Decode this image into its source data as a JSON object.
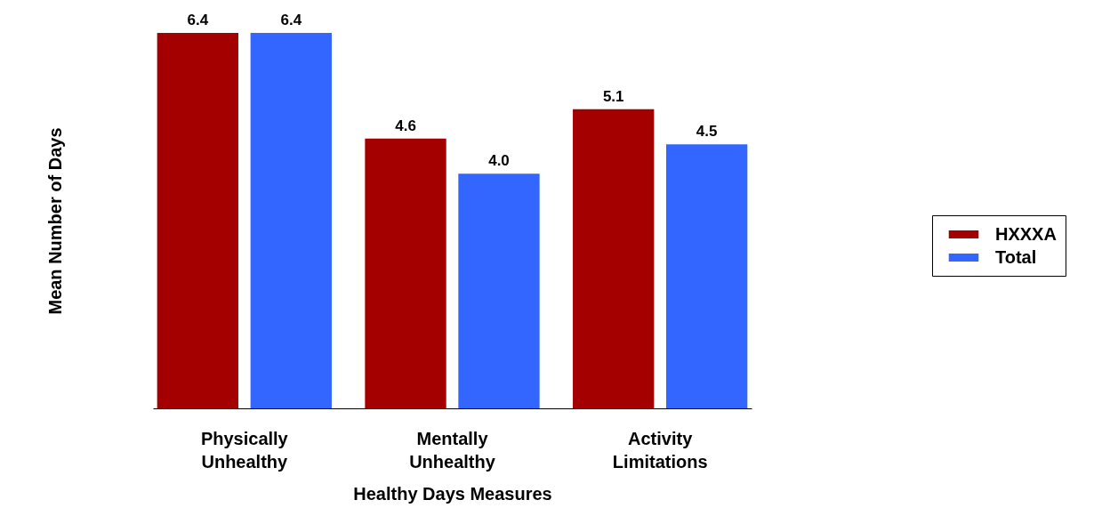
{
  "chart_data": {
    "type": "bar",
    "xlabel": "Healthy Days Measures",
    "ylabel": "Mean Number of Days",
    "categories": [
      "Physically Unhealthy",
      "Mentally Unhealthy",
      "Activity Limitations"
    ],
    "series": [
      {
        "name": "HXXXA",
        "color": "#a50000",
        "values": [
          6.4,
          4.6,
          5.1
        ],
        "value_labels": [
          "6.4",
          "4.6",
          "5.1"
        ]
      },
      {
        "name": "Total",
        "color": "#3366ff",
        "values": [
          6.4,
          4.0,
          4.5
        ],
        "value_labels": [
          "6.4",
          "4.0",
          "4.5"
        ]
      }
    ],
    "legend": "right",
    "grid": false
  }
}
